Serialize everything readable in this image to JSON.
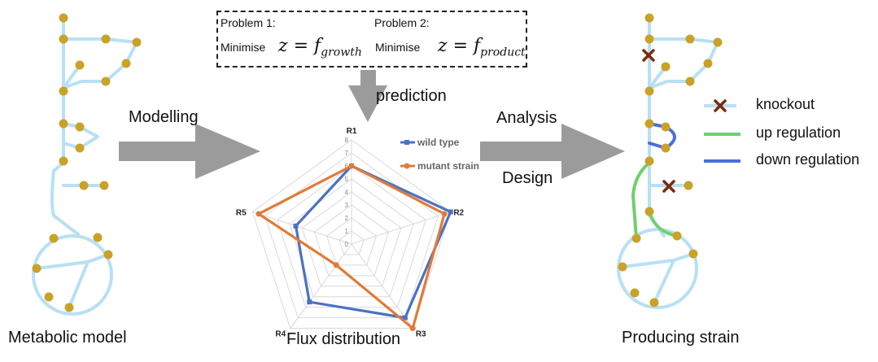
{
  "labels": {
    "metabolic_model": "Metabolic model",
    "flux_distribution": "Flux distribution",
    "producing_strain": "Producing strain",
    "modelling": "Modelling",
    "prediction": "prediction",
    "analysis": "Analysis",
    "design": "Design"
  },
  "problems": {
    "p1_title": "Problem 1:",
    "p1_verb": "Minimise",
    "p1_eq": "z = f",
    "p1_sub": "growth",
    "p2_title": "Problem 2:",
    "p2_verb": "Minimise",
    "p2_eq": "z = f",
    "p2_sub": "product"
  },
  "legend_right": {
    "knockout": "knockout",
    "up_regulation": "up regulation",
    "down_regulation": "down regulation"
  },
  "colors": {
    "network": "#b7e0f5",
    "node": "#c9a227",
    "knockout": "#7a2a0c",
    "up_regulation": "#6fcf6f",
    "down_regulation": "#4a6ee0",
    "arrow": "#9b9b9b",
    "wild_type": "#4a72c4",
    "mutant_strain": "#e07b39"
  },
  "chart_data": {
    "type": "radar",
    "categories": [
      "R1",
      "R2",
      "R3",
      "R4",
      "R5"
    ],
    "radial_ticks": [
      "0",
      "1",
      "2",
      "3",
      "4",
      "5",
      "6",
      "7",
      "8"
    ],
    "rmax": 8,
    "series": [
      {
        "name": "wild type",
        "values": [
          6,
          8,
          7,
          5.5,
          4.5
        ]
      },
      {
        "name": "mutant strain",
        "values": [
          6,
          7.5,
          8,
          2,
          7.5
        ]
      }
    ],
    "legend_position": "top-right"
  }
}
